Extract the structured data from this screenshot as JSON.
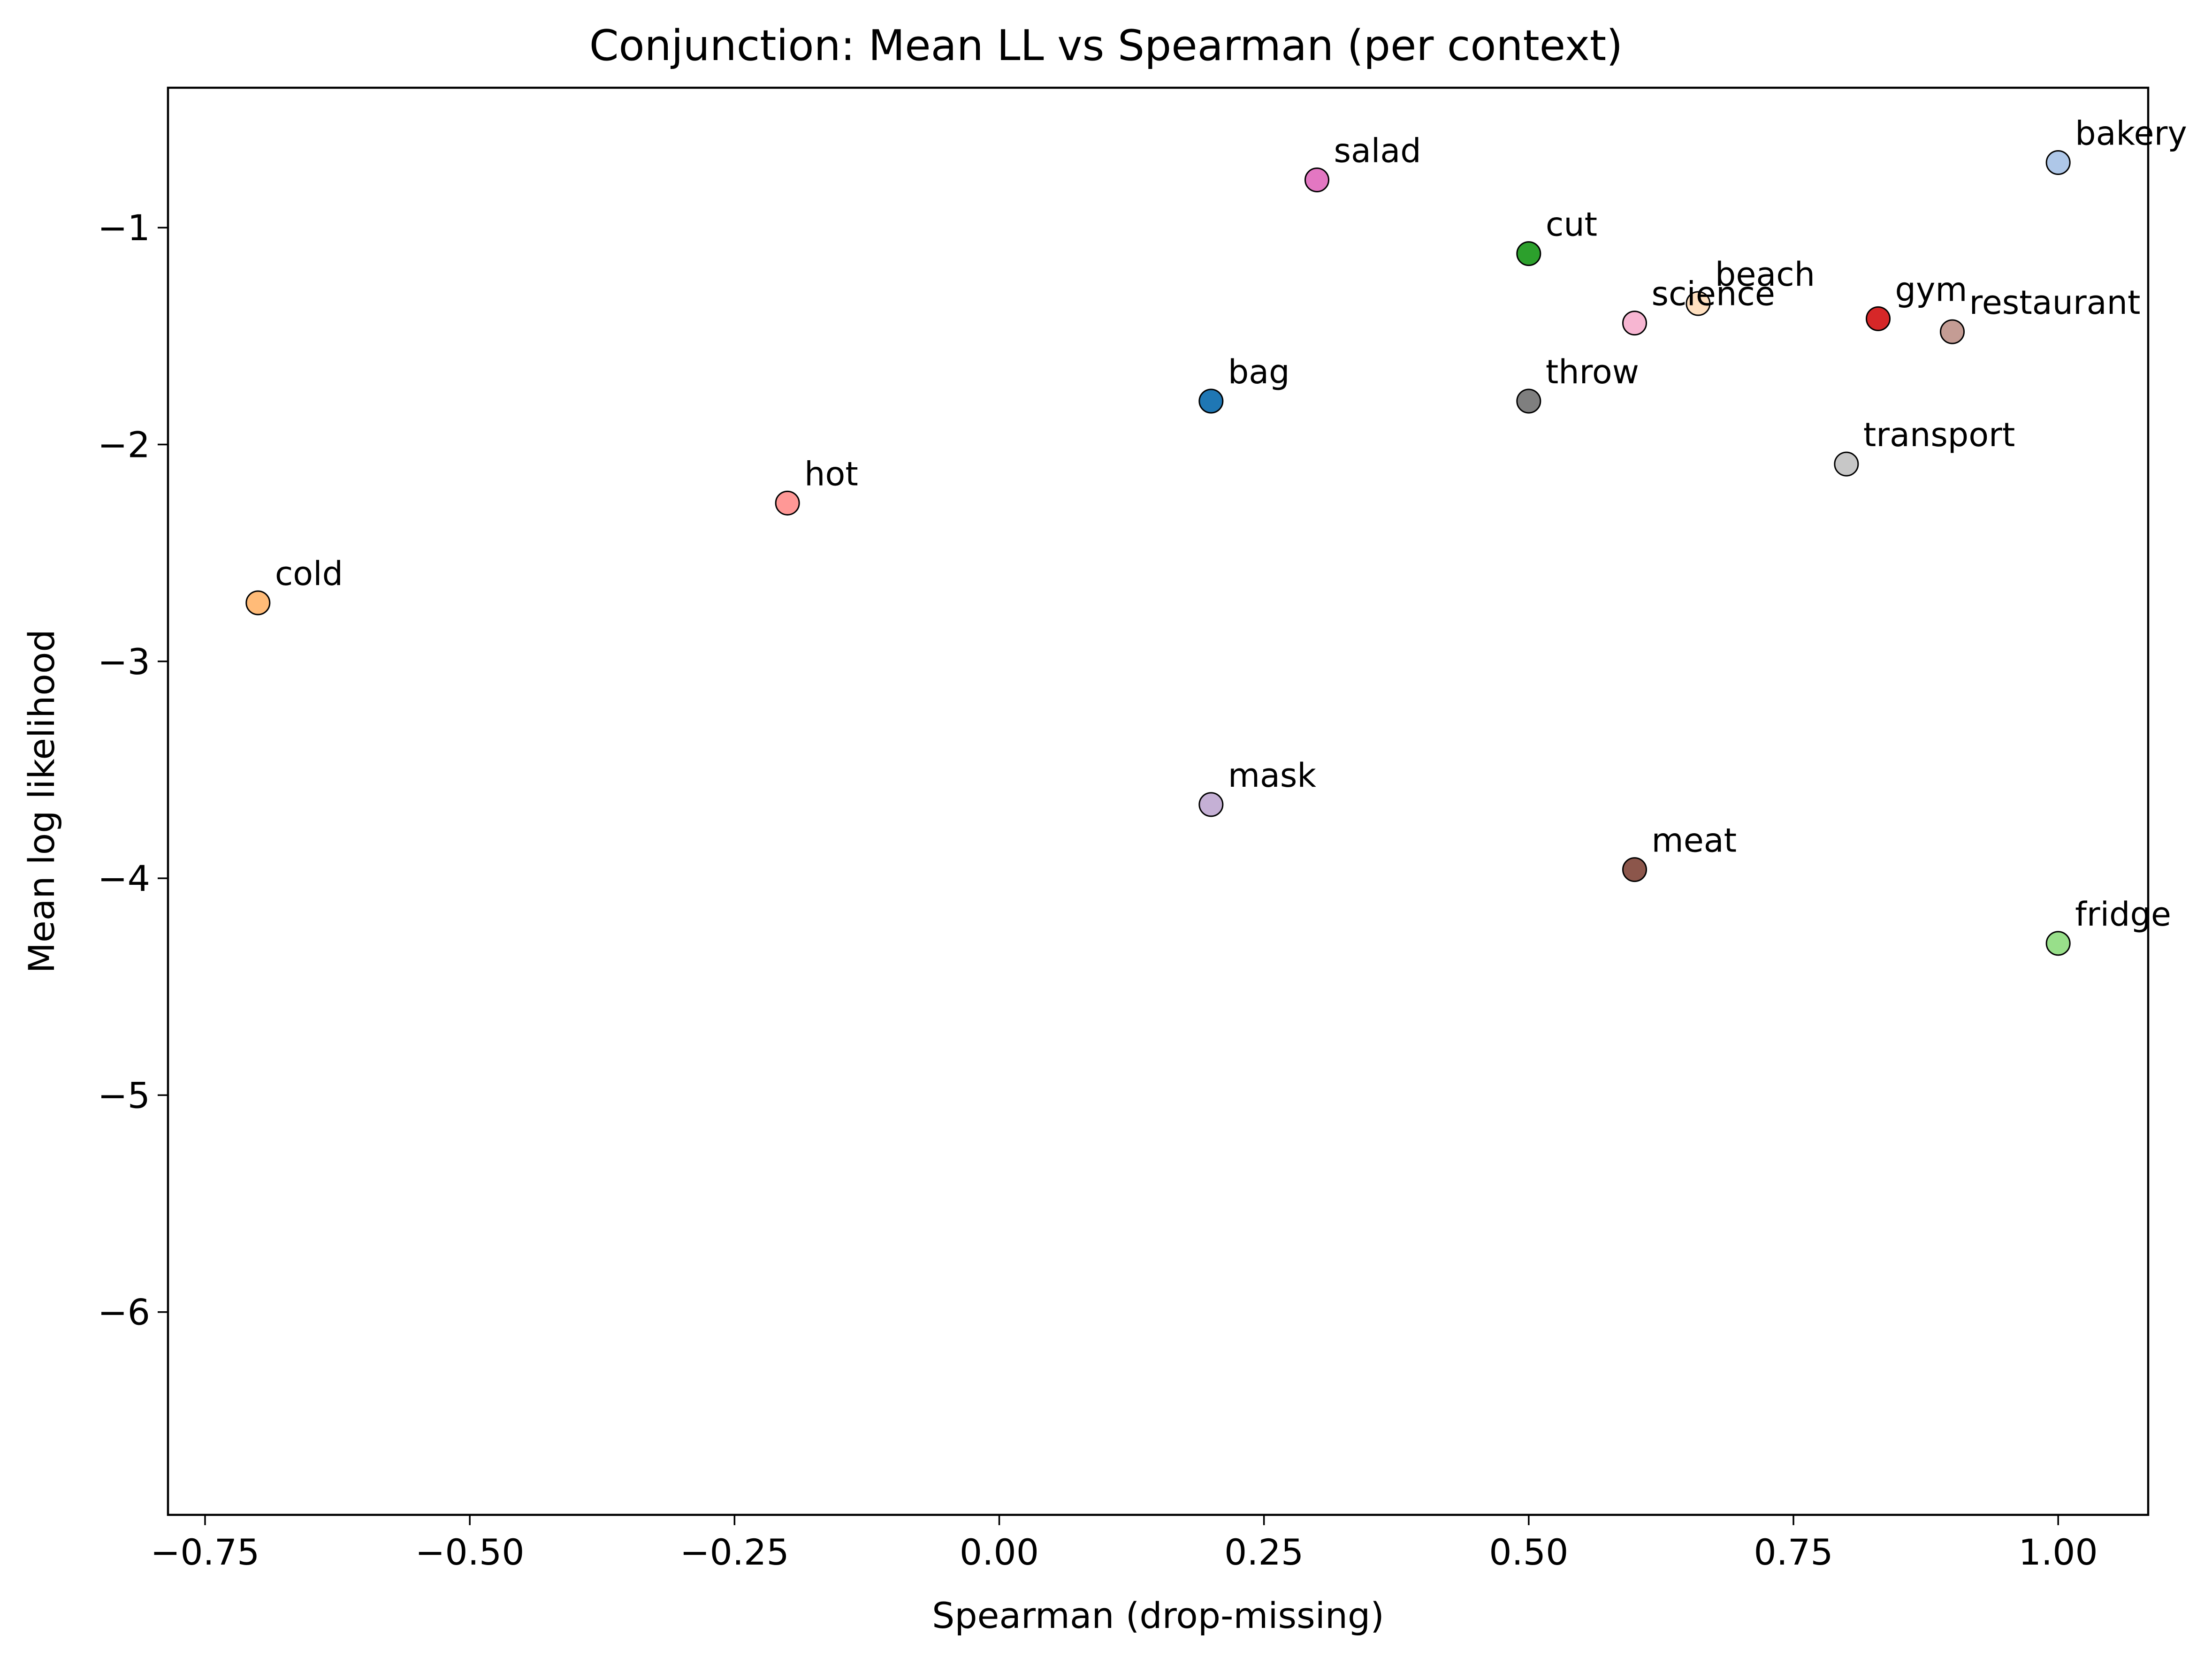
{
  "chart_data": {
    "type": "scatter",
    "title": "Conjunction: Mean LL vs Spearman (per context)",
    "xlabel": "Spearman (drop-missing)",
    "ylabel": "Mean log likelihood",
    "xlim": [
      -0.785,
      1.085
    ],
    "ylim": [
      -6.935,
      -0.355
    ],
    "x_ticks": [
      -0.75,
      -0.5,
      -0.25,
      0.0,
      0.25,
      0.5,
      0.75,
      1.0
    ],
    "x_tick_labels": [
      "−0.75",
      "−0.50",
      "−0.25",
      "0.00",
      "0.25",
      "0.50",
      "0.75",
      "1.00"
    ],
    "y_ticks": [
      -1,
      -2,
      -3,
      -4,
      -5,
      -6
    ],
    "y_tick_labels": [
      "−1",
      "−2",
      "−3",
      "−4",
      "−5",
      "−6"
    ],
    "grid": false,
    "points": [
      {
        "label": "salad",
        "x": 0.3,
        "y": -0.78,
        "color": "#e377c2"
      },
      {
        "label": "bakery",
        "x": 1.0,
        "y": -0.7,
        "color": "#aec7e8"
      },
      {
        "label": "cut",
        "x": 0.5,
        "y": -1.12,
        "color": "#2ca02c"
      },
      {
        "label": "beach",
        "x": 0.66,
        "y": -1.35,
        "color": "#ffe0c0"
      },
      {
        "label": "science",
        "x": 0.6,
        "y": -1.44,
        "color": "#f7b6d2"
      },
      {
        "label": "gym",
        "x": 0.83,
        "y": -1.42,
        "color": "#d62728"
      },
      {
        "label": "restaurant",
        "x": 0.9,
        "y": -1.48,
        "color": "#c49c94"
      },
      {
        "label": "bag",
        "x": 0.2,
        "y": -1.8,
        "color": "#1f77b4"
      },
      {
        "label": "throw",
        "x": 0.5,
        "y": -1.8,
        "color": "#7f7f7f"
      },
      {
        "label": "transport",
        "x": 0.8,
        "y": -2.09,
        "color": "#c7c7c7"
      },
      {
        "label": "hot",
        "x": -0.2,
        "y": -2.27,
        "color": "#ff9896"
      },
      {
        "label": "cold",
        "x": -0.7,
        "y": -2.73,
        "color": "#ffbb78"
      },
      {
        "label": "mask",
        "x": 0.2,
        "y": -3.66,
        "color": "#c5b0d5"
      },
      {
        "label": "meat",
        "x": 0.6,
        "y": -3.96,
        "color": "#8c564b"
      },
      {
        "label": "fridge",
        "x": 1.0,
        "y": -4.3,
        "color": "#98df8a"
      }
    ]
  }
}
